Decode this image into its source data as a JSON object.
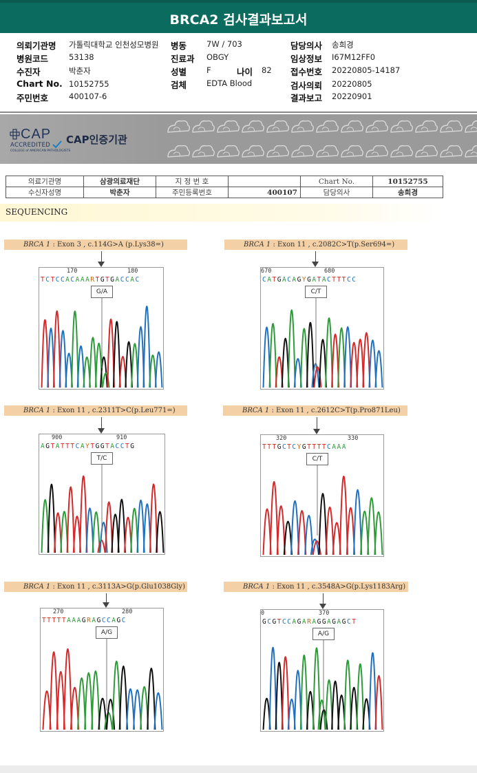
{
  "title": "BRCA2 검사결과보고서",
  "info": {
    "institution_label": "의뢰기관명",
    "institution": "가톨릭대학교 인천성모병원",
    "ward_label": "병동",
    "ward": "7W / 703",
    "doctor_label": "담당의사",
    "doctor": "송희경",
    "hospital_code_label": "병원코드",
    "hospital_code": "53138",
    "dept_label": "진료과",
    "dept": "OBGY",
    "clinical_label": "임상정보",
    "clinical": "I67M12FF0",
    "recipient_label": "수진자",
    "recipient": "박춘자",
    "sex_label": "성별",
    "sex": "F",
    "age_label": "나이",
    "age": "82",
    "receipt_label": "접수번호",
    "receipt": "20220805-14187",
    "chart_label": "Chart No.",
    "chart": "10152755",
    "specimen_label": "검체",
    "specimen": "EDTA Blood",
    "request_label": "검사의뢰",
    "request": "20220805",
    "rrn_label": "주민번호",
    "rrn": "400107-6",
    "report_label": "결과보고",
    "report": "20220901"
  },
  "cap": {
    "logo_text": "CAP",
    "accredited": "ACCREDITED",
    "college": "COLLEGE of AMERICAN PATHOLOGISTS",
    "label": "CAP인증기관"
  },
  "header_table": {
    "r1": [
      "의료기관명",
      "삼광의료재단",
      "지 정 번 호",
      "",
      "Chart No.",
      "10152755"
    ],
    "r2": [
      "수신자성명",
      "박춘자",
      "주민등록번호",
      "400107",
      "담당의사",
      "송희경"
    ]
  },
  "section": "SEQUENCING",
  "panels": [
    {
      "gene": "BRCA 1",
      "desc": " : Exon 3 , c.114G>A (p.Lys38=)",
      "pos1": "170",
      "pos2": "180",
      "bases": "TCTCCACAAARTGTGACCAC",
      "call": "G/A"
    },
    {
      "gene": "BRCA 1",
      "desc": " : Exon 11 , c.2082C>T(p.Ser694=)",
      "pos1": "670",
      "pos2": "680",
      "bases": "CATGACAGYGATACTTTCC",
      "call": "C/T"
    },
    {
      "gene": "BRCA 1",
      "desc": " : Exon 11 , c.2311T>C(p.Leu771=)",
      "pos1": "900",
      "pos2": "910",
      "bases": "AGTATTTCAYTGGTACCTG",
      "call": "T/C"
    },
    {
      "gene": "BRCA 1",
      "desc": " : Exon 11 , c.2612C>T(p.Pro871Leu)",
      "pos1": "320",
      "pos2": "330",
      "bases": "TTTGCTCYGTTTTCAAA",
      "call": "C/T"
    },
    {
      "gene": "BRCA 1",
      "desc": " : Exon 11 , c.3113A>G(p.Glu1038Gly)",
      "pos1": "270",
      "pos2": "280",
      "bases": "TTTTTAAAGRAGCCAGC",
      "call": "A/G"
    },
    {
      "gene": "BRCA 1",
      "desc": " : Exon 11 , c.3548A>G(p.Lys1183Arg)",
      "pos1": "0",
      "pos2": "370",
      "bases": "GCGTCCAGARAGGAGAGCT",
      "call": "A/G"
    }
  ],
  "colors": {
    "A": "#2e9a3a",
    "C": "#2070c0",
    "G": "#111111",
    "T": "#d62828",
    "header": "#0b6b5e"
  }
}
